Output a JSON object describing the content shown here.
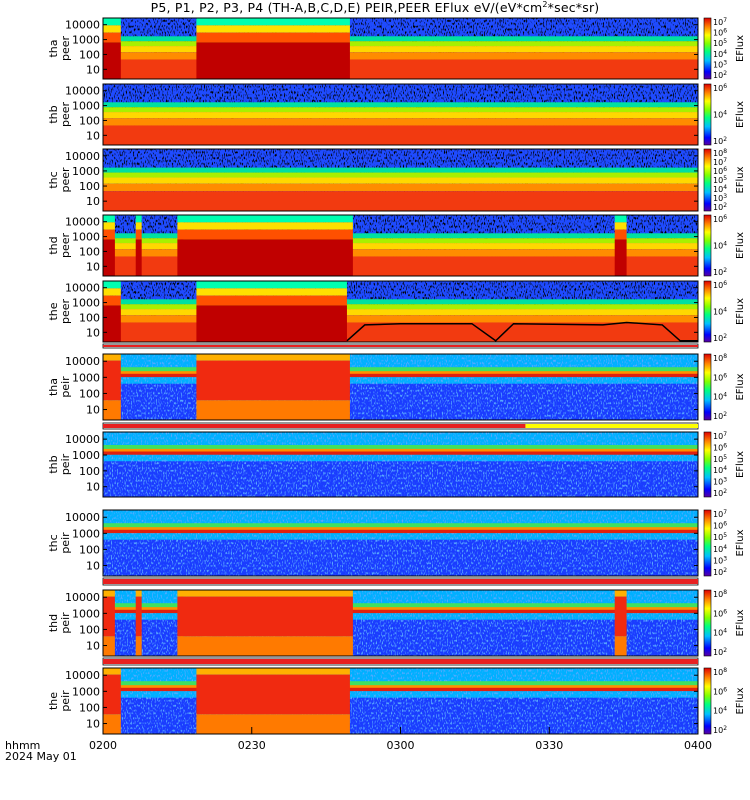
{
  "title": "P5, P1, P2, P3, P4 (TH-A,B,C,D,E) PEIR,PEER EFlux eV/(eV*cm",
  "title_sup": "2",
  "title_end": "*sec*sr)",
  "time_axis": {
    "ticks": [
      "0200",
      "0230",
      "0300",
      "0330",
      "0400"
    ],
    "label_line1": "hhmm",
    "label_line2": "2024 May 01"
  },
  "colors": {
    "saturated": "#c00000",
    "red_bar": "#e82020",
    "yellow_bar": "#ffff00"
  },
  "chart_data": [
    {
      "type": "heatmap",
      "panel": "tha_peer",
      "ylabel": [
        "tha",
        "peer"
      ],
      "ylog": true,
      "yticks": [
        "10000",
        "1000",
        "100",
        "10"
      ],
      "cb_label": "EFlux",
      "cb_ticks": [
        "10^7",
        "10^6",
        "10^5",
        "10^4",
        "10^3",
        "10^2"
      ]
    },
    {
      "type": "heatmap",
      "panel": "thb_peer",
      "ylabel": [
        "thb",
        "peer"
      ],
      "ylog": true,
      "yticks": [
        "10000",
        "1000",
        "100",
        "10"
      ],
      "cb_label": "EFlux",
      "cb_ticks": [
        "10^6",
        "10^4",
        "10^2"
      ]
    },
    {
      "type": "heatmap",
      "panel": "thc_peer",
      "ylabel": [
        "thc",
        "peer"
      ],
      "ylog": true,
      "yticks": [
        "10000",
        "1000",
        "100",
        "10"
      ],
      "cb_label": "EFlux",
      "cb_ticks": [
        "10^8",
        "10^7",
        "10^6",
        "10^5",
        "10^4",
        "10^3",
        "10^2"
      ]
    },
    {
      "type": "heatmap",
      "panel": "thd_peer",
      "ylabel": [
        "thd",
        "peer"
      ],
      "ylog": true,
      "yticks": [
        "10000",
        "1000",
        "100",
        "10"
      ],
      "cb_label": "EFlux",
      "cb_ticks": [
        "10^6",
        "10^4",
        "10^2"
      ]
    },
    {
      "type": "heatmap",
      "panel": "the_peer",
      "ylabel": [
        "the",
        "peer"
      ],
      "ylog": true,
      "yticks": [
        "10000",
        "1000",
        "100",
        "10"
      ],
      "cb_label": "EFlux",
      "cb_ticks": [
        "10^6",
        "10^4",
        "10^2"
      ]
    },
    {
      "type": "heatmap",
      "panel": "tha_peir",
      "ylabel": [
        "tha",
        "peir"
      ],
      "ylog": true,
      "yticks": [
        "10000",
        "1000",
        "100",
        "10"
      ],
      "cb_label": "EFlux",
      "cb_ticks": [
        "10^8",
        "10^6",
        "10^4",
        "10^2"
      ]
    },
    {
      "type": "heatmap",
      "panel": "thb_peir",
      "ylabel": [
        "thb",
        "peir"
      ],
      "ylog": true,
      "yticks": [
        "10000",
        "1000",
        "100",
        "10"
      ],
      "cb_label": "EFlux",
      "cb_ticks": [
        "10^7",
        "10^6",
        "10^5",
        "10^4",
        "10^3",
        "10^2"
      ]
    },
    {
      "type": "heatmap",
      "panel": "thc_peir",
      "ylabel": [
        "thc",
        "peir"
      ],
      "ylog": true,
      "yticks": [
        "10000",
        "1000",
        "100",
        "10"
      ],
      "cb_label": "EFlux",
      "cb_ticks": [
        "10^7",
        "10^6",
        "10^5",
        "10^4",
        "10^3",
        "10^2"
      ]
    },
    {
      "type": "heatmap",
      "panel": "thd_peir",
      "ylabel": [
        "thd",
        "peir"
      ],
      "ylog": true,
      "yticks": [
        "10000",
        "1000",
        "100",
        "10"
      ],
      "cb_label": "EFlux",
      "cb_ticks": [
        "10^8",
        "10^6",
        "10^4",
        "10^2"
      ]
    },
    {
      "type": "heatmap",
      "panel": "the_peir",
      "ylabel": [
        "the",
        "peir"
      ],
      "ylog": true,
      "yticks": [
        "10000",
        "1000",
        "100",
        "10"
      ],
      "cb_label": "EFlux",
      "cb_ticks": [
        "10^8",
        "10^6",
        "10^4",
        "10^2"
      ]
    }
  ]
}
